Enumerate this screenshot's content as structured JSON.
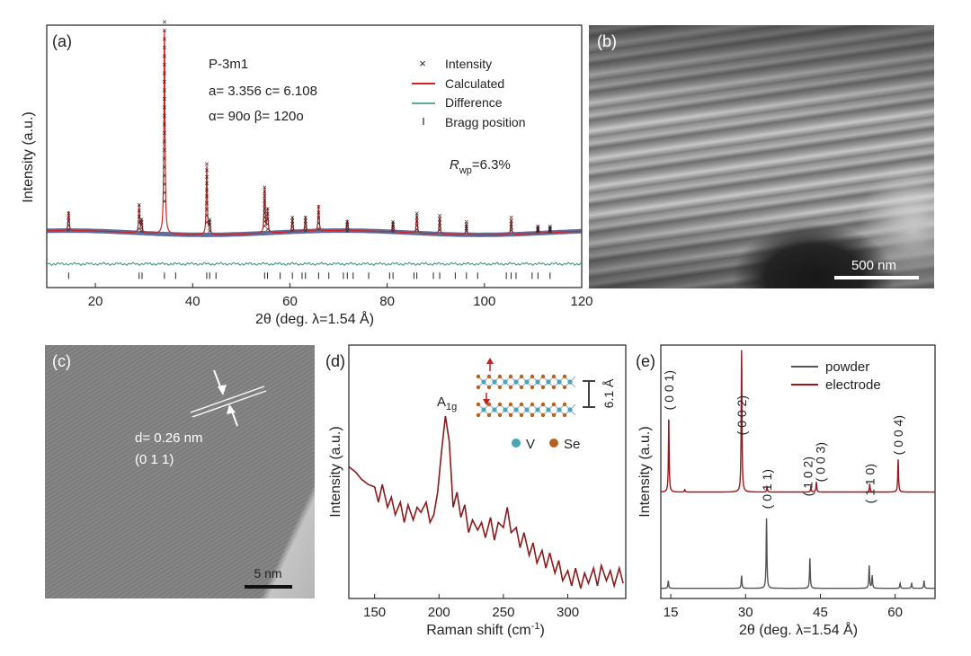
{
  "panels": {
    "a": {
      "label": "(a)"
    },
    "b": {
      "label": "(b)",
      "scale_bar": "500 nm"
    },
    "c": {
      "label": "(c)",
      "d_spacing": "d= 0.26 nm",
      "plane": "(0 1 1)",
      "scale_bar": "5 nm"
    },
    "d": {
      "label": "(d)",
      "peak_main": "A",
      "peak_sub": "1g",
      "interlayer": "6.1 Å",
      "legend_v": "V",
      "legend_se": "Se"
    },
    "e": {
      "label": "(e)"
    }
  },
  "colors": {
    "calc": "#d42020",
    "intensity": "#555555",
    "diff": "#2f8f7a",
    "bragg": "#222222",
    "raman": "#8b1a1a",
    "powder": "#555555",
    "electrode": "#a0141c",
    "vatom": "#4aa3b8",
    "seatom": "#b8621e"
  },
  "chart_data": [
    {
      "type": "line",
      "id": "a",
      "xlabel": "2θ (deg. λ=1.54 Å)",
      "ylabel": "Intensity (a.u.)",
      "xlim": [
        10,
        120
      ],
      "xticks": [
        20,
        40,
        60,
        80,
        100,
        120
      ],
      "ylim": [
        -0.2,
        1.02
      ],
      "annotations": [
        "P-3m1",
        "a= 3.356 c= 6.108",
        "α= 90o β= 120o"
      ],
      "rwp": {
        "symbol": "R",
        "sub": "wp",
        "value": "=6.3%"
      },
      "legend": [
        "Intensity",
        "Calculated",
        "Difference",
        "Bragg position"
      ],
      "background": 0.055,
      "peaks": [
        [
          14.5,
          0.09
        ],
        [
          29.0,
          0.13
        ],
        [
          29.5,
          0.06
        ],
        [
          34.2,
          0.98
        ],
        [
          42.9,
          0.32
        ],
        [
          43.5,
          0.06
        ],
        [
          54.8,
          0.21
        ],
        [
          55.4,
          0.11
        ],
        [
          60.5,
          0.07
        ],
        [
          63.2,
          0.07
        ],
        [
          65.9,
          0.12
        ],
        [
          71.8,
          0.05
        ],
        [
          81.2,
          0.05
        ],
        [
          86.1,
          0.09
        ],
        [
          90.8,
          0.08
        ],
        [
          96.3,
          0.05
        ],
        [
          105.5,
          0.07
        ],
        [
          111.0,
          0.03
        ],
        [
          113.5,
          0.03
        ]
      ],
      "bragg_positions": [
        14.5,
        29.0,
        29.6,
        34.2,
        36.5,
        42.9,
        43.5,
        44.8,
        54.8,
        55.4,
        58.0,
        60.5,
        62.5,
        63.2,
        65.9,
        68.0,
        71.0,
        71.8,
        73.0,
        76.2,
        80.5,
        81.2,
        85.5,
        86.1,
        89.5,
        90.8,
        94.0,
        96.3,
        98.6,
        104.5,
        105.5,
        106.5,
        109.8,
        111.0,
        113.5
      ]
    },
    {
      "type": "line",
      "id": "d",
      "xlabel": "Raman shift (cm",
      "xlabel_sup": "-1",
      "xlabel_end": ")",
      "ylabel": "Intensity (a.u.)",
      "xlim": [
        130,
        345
      ],
      "xticks": [
        150,
        200,
        250,
        300
      ],
      "ylim": [
        0,
        1
      ],
      "series": [
        {
          "x": [
            130,
            135,
            140,
            145,
            150,
            153,
            156,
            160,
            163,
            166,
            170,
            173,
            176,
            180,
            183,
            186,
            190,
            193,
            196,
            199,
            202,
            205,
            208,
            211,
            214,
            217,
            220,
            223,
            226,
            230,
            233,
            236,
            240,
            243,
            246,
            250,
            253,
            256,
            260,
            263,
            266,
            270,
            273,
            276,
            280,
            283,
            286,
            290,
            293,
            296,
            300,
            303,
            306,
            310,
            313,
            316,
            320,
            323,
            326,
            330,
            333,
            336,
            340,
            343
          ],
          "y": [
            0.52,
            0.5,
            0.47,
            0.45,
            0.44,
            0.38,
            0.45,
            0.36,
            0.4,
            0.33,
            0.38,
            0.3,
            0.37,
            0.31,
            0.36,
            0.34,
            0.38,
            0.3,
            0.33,
            0.42,
            0.58,
            0.72,
            0.62,
            0.36,
            0.42,
            0.32,
            0.37,
            0.26,
            0.31,
            0.27,
            0.3,
            0.24,
            0.32,
            0.23,
            0.3,
            0.28,
            0.36,
            0.26,
            0.28,
            0.2,
            0.26,
            0.17,
            0.22,
            0.14,
            0.19,
            0.12,
            0.18,
            0.1,
            0.15,
            0.07,
            0.11,
            0.05,
            0.12,
            0.04,
            0.1,
            0.06,
            0.12,
            0.05,
            0.13,
            0.07,
            0.11,
            0.05,
            0.12,
            0.06
          ]
        }
      ]
    },
    {
      "type": "line",
      "id": "e",
      "xlabel": "2θ (deg. λ=1.54 Å)",
      "ylabel": "Intensity (a.u.)",
      "xlim": [
        13,
        68
      ],
      "xticks": [
        15,
        30,
        45,
        60
      ],
      "ylim": [
        0,
        1
      ],
      "series": [
        {
          "name": "powder",
          "baseline": 0.04,
          "peaks": [
            [
              14.5,
              0.03
            ],
            [
              29.2,
              0.05
            ],
            [
              34.2,
              0.28
            ],
            [
              42.9,
              0.12
            ],
            [
              54.8,
              0.09
            ],
            [
              55.4,
              0.05
            ],
            [
              61.0,
              0.02
            ],
            [
              63.3,
              0.02
            ],
            [
              65.8,
              0.03
            ]
          ]
        },
        {
          "name": "electrode",
          "baseline": 0.42,
          "peaks": [
            [
              14.6,
              0.29
            ],
            [
              17.8,
              0.01
            ],
            [
              29.2,
              0.56
            ],
            [
              34.3,
              0.02
            ],
            [
              43.1,
              0.02
            ],
            [
              44.2,
              0.04
            ],
            [
              54.9,
              0.03
            ],
            [
              60.6,
              0.13
            ]
          ]
        }
      ],
      "peak_labels": [
        {
          "x": 14.6,
          "text": "( 0 0 1)"
        },
        {
          "x": 29.2,
          "text": "( 0 0 2)"
        },
        {
          "x": 34.3,
          "text": "( 0 1 1)"
        },
        {
          "x": 42.5,
          "text": "( 1 0 2)"
        },
        {
          "x": 45.0,
          "text": "( 0 0 3)"
        },
        {
          "x": 54.9,
          "text": "( 1 1 0)"
        },
        {
          "x": 60.6,
          "text": "( 0 0 4)"
        }
      ]
    }
  ]
}
